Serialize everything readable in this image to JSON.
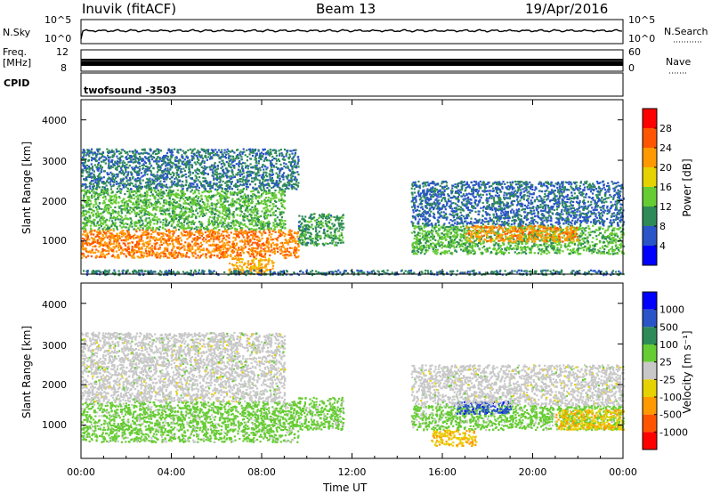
{
  "header": {
    "station": "Inuvik (fitACF)",
    "beam": "Beam 13",
    "date": "19/Apr/2016"
  },
  "strips": {
    "nsky": {
      "left_label": "N.Sky",
      "ytick_top": "10^5",
      "ytick_bottom": "10^0",
      "right_label": "N.Search",
      "right_tick_top": "10^5",
      "right_tick_bottom": "10^0"
    },
    "freq": {
      "left_label_line1": "Freq.",
      "left_label_line2": "[MHz]",
      "ytick_top": "12",
      "ytick_bottom": "8",
      "right_label": "Nave",
      "right_tick_top": "60",
      "right_tick_bottom": "0"
    },
    "cpid": {
      "left_label": "CPID",
      "value": "twofsound  -3503"
    }
  },
  "panels": {
    "power": {
      "ylabel": "Slant Range [km]",
      "colorbar_label": "Power [dB]",
      "colorbar_ticks": [
        "28",
        "24",
        "20",
        "16",
        "12",
        "8",
        "4"
      ]
    },
    "velocity": {
      "ylabel": "Slant Range [km]",
      "colorbar_label": "Velocity [m s⁻¹]",
      "colorbar_ticks": [
        "1000",
        "500",
        "100",
        "25",
        "-25",
        "-100",
        "-500",
        "-1000"
      ]
    }
  },
  "xaxis": {
    "label": "Time UT",
    "ticks": [
      "00:00",
      "04:00",
      "08:00",
      "12:00",
      "16:00",
      "20:00",
      "00:00"
    ]
  },
  "colors": {
    "power_scale": [
      "#0000ff",
      "#2a55c8",
      "#2e8b57",
      "#66cc33",
      "#e6d200",
      "#ff9900",
      "#ff5500",
      "#ff0000"
    ],
    "velocity_scale": [
      "#ff0000",
      "#ff5500",
      "#ff9900",
      "#e6d200",
      "#c8c8c8",
      "#66cc33",
      "#2e8b57",
      "#2a55c8",
      "#0000ff"
    ]
  },
  "chart_data": [
    {
      "type": "heatmap",
      "title": "Power",
      "x_range_hours": [
        0,
        24
      ],
      "y_range_km": [
        180,
        4500
      ],
      "y_ticks": [
        1000,
        2000,
        3000,
        4000
      ],
      "value_range": [
        0,
        30
      ],
      "colorbar_ticks": [
        4,
        8,
        12,
        16,
        20,
        24,
        28
      ],
      "regions": [
        {
          "t0": 0.0,
          "t1": 9.6,
          "r0": 600,
          "r1": 1300,
          "level": 22
        },
        {
          "t0": 0.0,
          "t1": 9.0,
          "r0": 1300,
          "r1": 2300,
          "level": 12
        },
        {
          "t0": 0.0,
          "t1": 9.6,
          "r0": 2300,
          "r1": 3300,
          "level": 8
        },
        {
          "t0": 6.5,
          "t1": 8.5,
          "r0": 200,
          "r1": 600,
          "level": 20
        },
        {
          "t0": 9.6,
          "t1": 11.6,
          "r0": 900,
          "r1": 1700,
          "level": 10
        },
        {
          "t0": 14.6,
          "t1": 24.0,
          "r0": 700,
          "r1": 1400,
          "level": 12
        },
        {
          "t0": 14.6,
          "t1": 24.0,
          "r0": 1400,
          "r1": 2500,
          "level": 7
        },
        {
          "t0": 17.0,
          "t1": 22.0,
          "r0": 1000,
          "r1": 1400,
          "level": 21
        },
        {
          "t0": 0.0,
          "t1": 24.0,
          "r0": 180,
          "r1": 300,
          "level": 8
        }
      ]
    },
    {
      "type": "heatmap",
      "title": "Velocity",
      "x_range_hours": [
        0,
        24
      ],
      "y_range_km": [
        180,
        4500
      ],
      "y_ticks": [
        1000,
        2000,
        3000,
        4000
      ],
      "value_range": [
        -1000,
        1000
      ],
      "colorbar_ticks": [
        -1000,
        -500,
        -100,
        -25,
        25,
        100,
        500,
        1000
      ],
      "regions": [
        {
          "t0": 0.0,
          "t1": 9.6,
          "r0": 600,
          "r1": 1600,
          "level": 200
        },
        {
          "t0": 0.0,
          "t1": 9.0,
          "r0": 1600,
          "r1": 3300,
          "level": 0
        },
        {
          "t0": 9.6,
          "t1": 11.6,
          "r0": 900,
          "r1": 1700,
          "level": 200
        },
        {
          "t0": 14.6,
          "t1": 24.0,
          "r0": 900,
          "r1": 1500,
          "level": 200
        },
        {
          "t0": 16.5,
          "t1": 19.0,
          "r0": 1300,
          "r1": 1600,
          "level": 700
        },
        {
          "t0": 21.0,
          "t1": 24.0,
          "r0": 900,
          "r1": 1400,
          "level": -300
        },
        {
          "t0": 14.6,
          "t1": 24.0,
          "r0": 1500,
          "r1": 2500,
          "level": 0
        },
        {
          "t0": 15.5,
          "t1": 17.5,
          "r0": 500,
          "r1": 900,
          "level": -300
        }
      ]
    }
  ]
}
